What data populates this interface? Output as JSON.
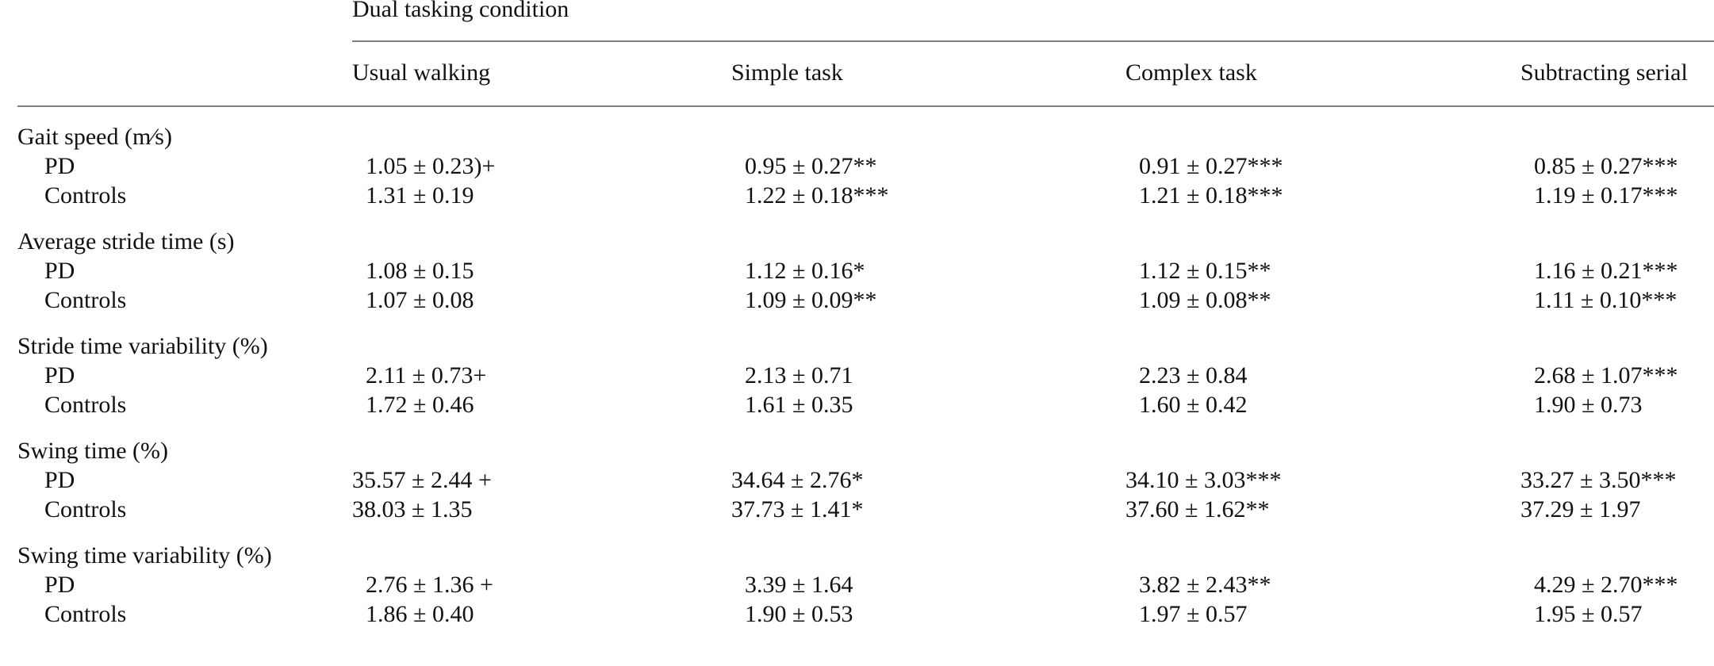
{
  "header": {
    "title": "Dual tasking condition"
  },
  "columns": [
    "Usual walking",
    "Simple task",
    "Complex task",
    "Subtracting serial"
  ],
  "groups": [
    {
      "label": "Gait speed (m∕s)",
      "rows": [
        {
          "label": "PD",
          "values": [
            "1.05 ± 0.23)+",
            "0.95 ± 0.27**",
            "0.91 ± 0.27***",
            "0.85 ± 0.27***"
          ]
        },
        {
          "label": "Controls",
          "values": [
            "1.31 ± 0.19",
            "1.22 ± 0.18***",
            "1.21 ± 0.18***",
            "1.19 ± 0.17***"
          ]
        }
      ]
    },
    {
      "label": "Average stride time (s)",
      "rows": [
        {
          "label": "PD",
          "values": [
            "1.08 ± 0.15",
            "1.12 ± 0.16*",
            "1.12 ± 0.15**",
            "1.16 ± 0.21***"
          ]
        },
        {
          "label": "Controls",
          "values": [
            "1.07 ± 0.08",
            "1.09 ± 0.09**",
            "1.09 ± 0.08**",
            "1.11 ± 0.10***"
          ]
        }
      ]
    },
    {
      "label": "Stride time variability (%)",
      "rows": [
        {
          "label": "PD",
          "values": [
            "2.11 ± 0.73+",
            "2.13 ± 0.71",
            "2.23 ± 0.84",
            "2.68 ± 1.07***"
          ]
        },
        {
          "label": "Controls",
          "values": [
            "1.72 ± 0.46",
            "1.61 ± 0.35",
            "1.60 ± 0.42",
            "1.90 ± 0.73"
          ]
        }
      ]
    },
    {
      "label": "Swing time (%)",
      "rows": [
        {
          "label": "PD",
          "values": [
            "35.57 ± 2.44 +",
            "34.64 ± 2.76*",
            "34.10 ± 3.03***",
            "33.27 ± 3.50***"
          ]
        },
        {
          "label": "Controls",
          "values": [
            "38.03 ± 1.35",
            "37.73 ± 1.41*",
            "37.60 ± 1.62**",
            "37.29 ± 1.97"
          ]
        }
      ]
    },
    {
      "label": "Swing time variability (%)",
      "rows": [
        {
          "label": "PD",
          "values": [
            "2.76 ± 1.36 +",
            "3.39 ± 1.64",
            "3.82 ± 2.43**",
            "4.29 ± 2.70***"
          ]
        },
        {
          "label": "Controls",
          "values": [
            "1.86 ± 0.40",
            "1.90 ± 0.53",
            "1.97 ± 0.57",
            "1.95 ± 0.57"
          ]
        }
      ]
    }
  ]
}
